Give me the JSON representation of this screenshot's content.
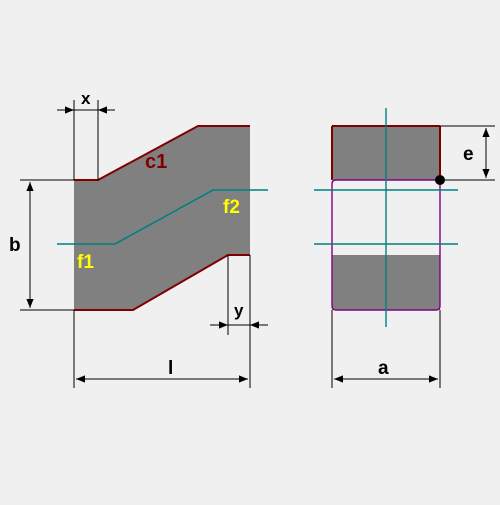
{
  "colors": {
    "background": "#f0f0f0",
    "body_fill": "#808080",
    "dim_line": "#000000",
    "edge_dark_red": "#800000",
    "axis_teal": "#008080",
    "label_yellow": "#ffff00",
    "label_c1": "#800000",
    "outline_purple": "#800080"
  },
  "labels": {
    "x": "x",
    "y": "y",
    "b": "b",
    "l": "l",
    "a": "a",
    "e": "e",
    "c1": "c1",
    "f1": "f1",
    "f2": "f2"
  }
}
